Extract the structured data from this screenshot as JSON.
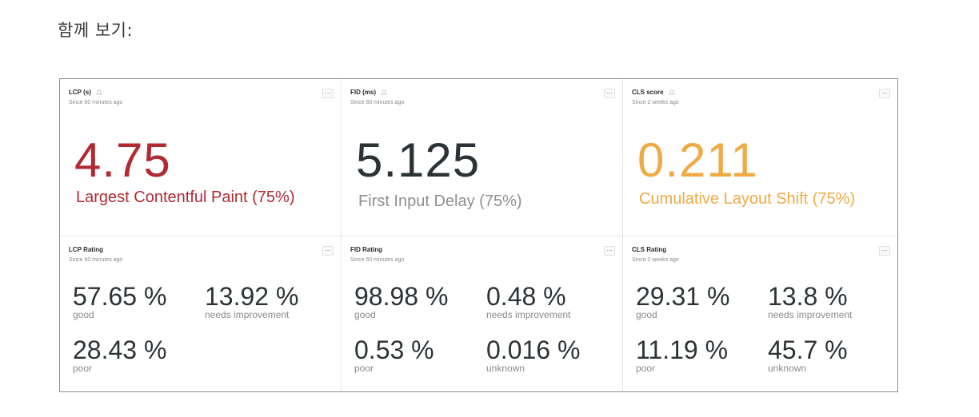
{
  "heading": "함께 보기:",
  "widgets": {
    "lcp": {
      "title": "LCP (s)",
      "subtitle": "Since 60 minutes ago",
      "value": "4.75",
      "label": "Largest Contentful Paint (75%)",
      "color": "#b02a33"
    },
    "fid": {
      "title": "FID (ms)",
      "subtitle": "Since 60 minutes ago",
      "value": "5.125",
      "label": "First Input Delay (75%)",
      "color": "#2c3336"
    },
    "cls": {
      "title": "CLS score",
      "subtitle": "Since 2 weeks ago",
      "value": "0.211",
      "label": "Cumulative Layout Shift (75%)",
      "color": "#efaa44"
    },
    "lcp_rating": {
      "title": "LCP Rating",
      "subtitle": "Since 60 minutes ago",
      "items": [
        {
          "value": "57.65 %",
          "label": "good"
        },
        {
          "value": "13.92 %",
          "label": "needs improvement"
        },
        {
          "value": "28.43 %",
          "label": "poor"
        }
      ]
    },
    "fid_rating": {
      "title": "FID Rating",
      "subtitle": "Since 60 minutes ago",
      "items": [
        {
          "value": "98.98 %",
          "label": "good"
        },
        {
          "value": "0.48 %",
          "label": "needs improvement"
        },
        {
          "value": "0.53 %",
          "label": "poor"
        },
        {
          "value": "0.016 %",
          "label": "unknown"
        }
      ]
    },
    "cls_rating": {
      "title": "CLS Rating",
      "subtitle": "Since 2 weeks ago",
      "items": [
        {
          "value": "29.31 %",
          "label": "good"
        },
        {
          "value": "13.8 %",
          "label": "needs improvement"
        },
        {
          "value": "11.19 %",
          "label": "poor"
        },
        {
          "value": "45.7 %",
          "label": "unknown"
        }
      ]
    }
  },
  "menu_label": "..."
}
